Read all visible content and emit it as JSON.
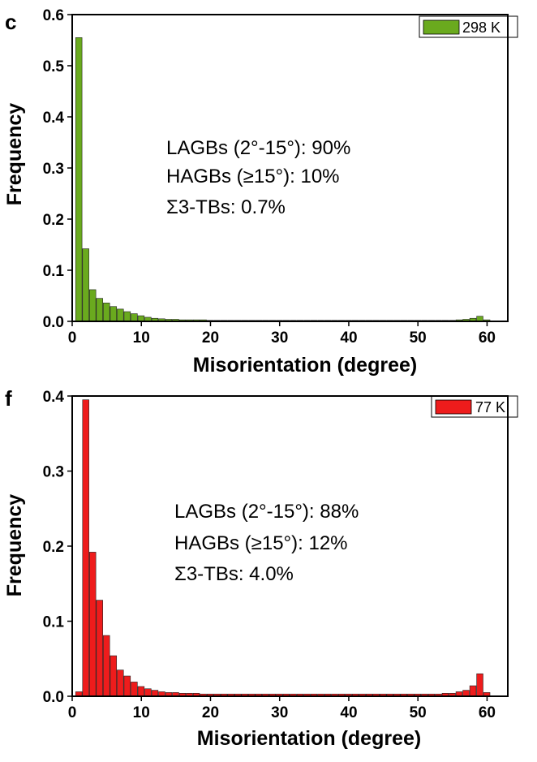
{
  "chart_data": [
    {
      "panel": "c",
      "type": "bar",
      "legend": "298 K",
      "color": "#6aaa1e",
      "xlabel": "Misorientation (degree)",
      "ylabel": "Frequency",
      "xlim": [
        0,
        63
      ],
      "ylim": [
        0,
        0.6
      ],
      "xticks": [
        "0",
        "10",
        "20",
        "30",
        "40",
        "50",
        "60"
      ],
      "yticks": [
        "0.0",
        "0.1",
        "0.2",
        "0.3",
        "0.4",
        "0.5",
        "0.6"
      ],
      "annotations": [
        "LAGBs (2°-15°): 90%",
        "HAGBs (≥15°): 10%",
        "Σ3-TBs: 0.7%"
      ],
      "x": [
        1,
        2,
        3,
        4,
        5,
        6,
        7,
        8,
        9,
        10,
        11,
        12,
        13,
        14,
        15,
        16,
        17,
        18,
        19,
        20,
        21,
        22,
        23,
        24,
        25,
        26,
        27,
        28,
        29,
        30,
        31,
        32,
        33,
        34,
        35,
        36,
        37,
        38,
        39,
        40,
        41,
        42,
        43,
        44,
        45,
        46,
        47,
        48,
        49,
        50,
        51,
        52,
        53,
        54,
        55,
        56,
        57,
        58,
        59,
        60
      ],
      "values": [
        0.555,
        0.142,
        0.062,
        0.045,
        0.036,
        0.029,
        0.024,
        0.019,
        0.015,
        0.011,
        0.008,
        0.006,
        0.005,
        0.004,
        0.004,
        0.003,
        0.003,
        0.003,
        0.003,
        0.002,
        0.002,
        0.002,
        0.002,
        0.002,
        0.002,
        0.002,
        0.002,
        0.002,
        0.002,
        0.002,
        0.002,
        0.002,
        0.002,
        0.002,
        0.002,
        0.002,
        0.002,
        0.002,
        0.002,
        0.002,
        0.002,
        0.002,
        0.002,
        0.002,
        0.002,
        0.002,
        0.002,
        0.002,
        0.002,
        0.002,
        0.002,
        0.002,
        0.002,
        0.002,
        0.002,
        0.003,
        0.004,
        0.006,
        0.01,
        0.003
      ]
    },
    {
      "panel": "f",
      "type": "bar",
      "legend": "77 K",
      "color": "#ee1c1c",
      "xlabel": "Misorientation (degree)",
      "ylabel": "Frequency",
      "xlim": [
        0,
        63
      ],
      "ylim": [
        0,
        0.4
      ],
      "xticks": [
        "0",
        "10",
        "20",
        "30",
        "40",
        "50",
        "60"
      ],
      "yticks": [
        "0.0",
        "0.1",
        "0.2",
        "0.3",
        "0.4"
      ],
      "annotations": [
        "LAGBs (2°-15°): 88%",
        "HAGBs (≥15°): 12%",
        "Σ3-TBs: 4.0%"
      ],
      "x": [
        1,
        2,
        3,
        4,
        5,
        6,
        7,
        8,
        9,
        10,
        11,
        12,
        13,
        14,
        15,
        16,
        17,
        18,
        19,
        20,
        21,
        22,
        23,
        24,
        25,
        26,
        27,
        28,
        29,
        30,
        31,
        32,
        33,
        34,
        35,
        36,
        37,
        38,
        39,
        40,
        41,
        42,
        43,
        44,
        45,
        46,
        47,
        48,
        49,
        50,
        51,
        52,
        53,
        54,
        55,
        56,
        57,
        58,
        59,
        60
      ],
      "values": [
        0.006,
        0.395,
        0.192,
        0.128,
        0.081,
        0.054,
        0.035,
        0.027,
        0.019,
        0.013,
        0.01,
        0.008,
        0.006,
        0.005,
        0.005,
        0.004,
        0.004,
        0.004,
        0.003,
        0.003,
        0.003,
        0.003,
        0.003,
        0.003,
        0.003,
        0.003,
        0.003,
        0.003,
        0.003,
        0.003,
        0.003,
        0.003,
        0.003,
        0.003,
        0.003,
        0.003,
        0.003,
        0.003,
        0.003,
        0.003,
        0.003,
        0.003,
        0.003,
        0.003,
        0.003,
        0.003,
        0.003,
        0.003,
        0.003,
        0.003,
        0.003,
        0.003,
        0.003,
        0.004,
        0.004,
        0.006,
        0.008,
        0.014,
        0.03,
        0.005
      ]
    }
  ]
}
